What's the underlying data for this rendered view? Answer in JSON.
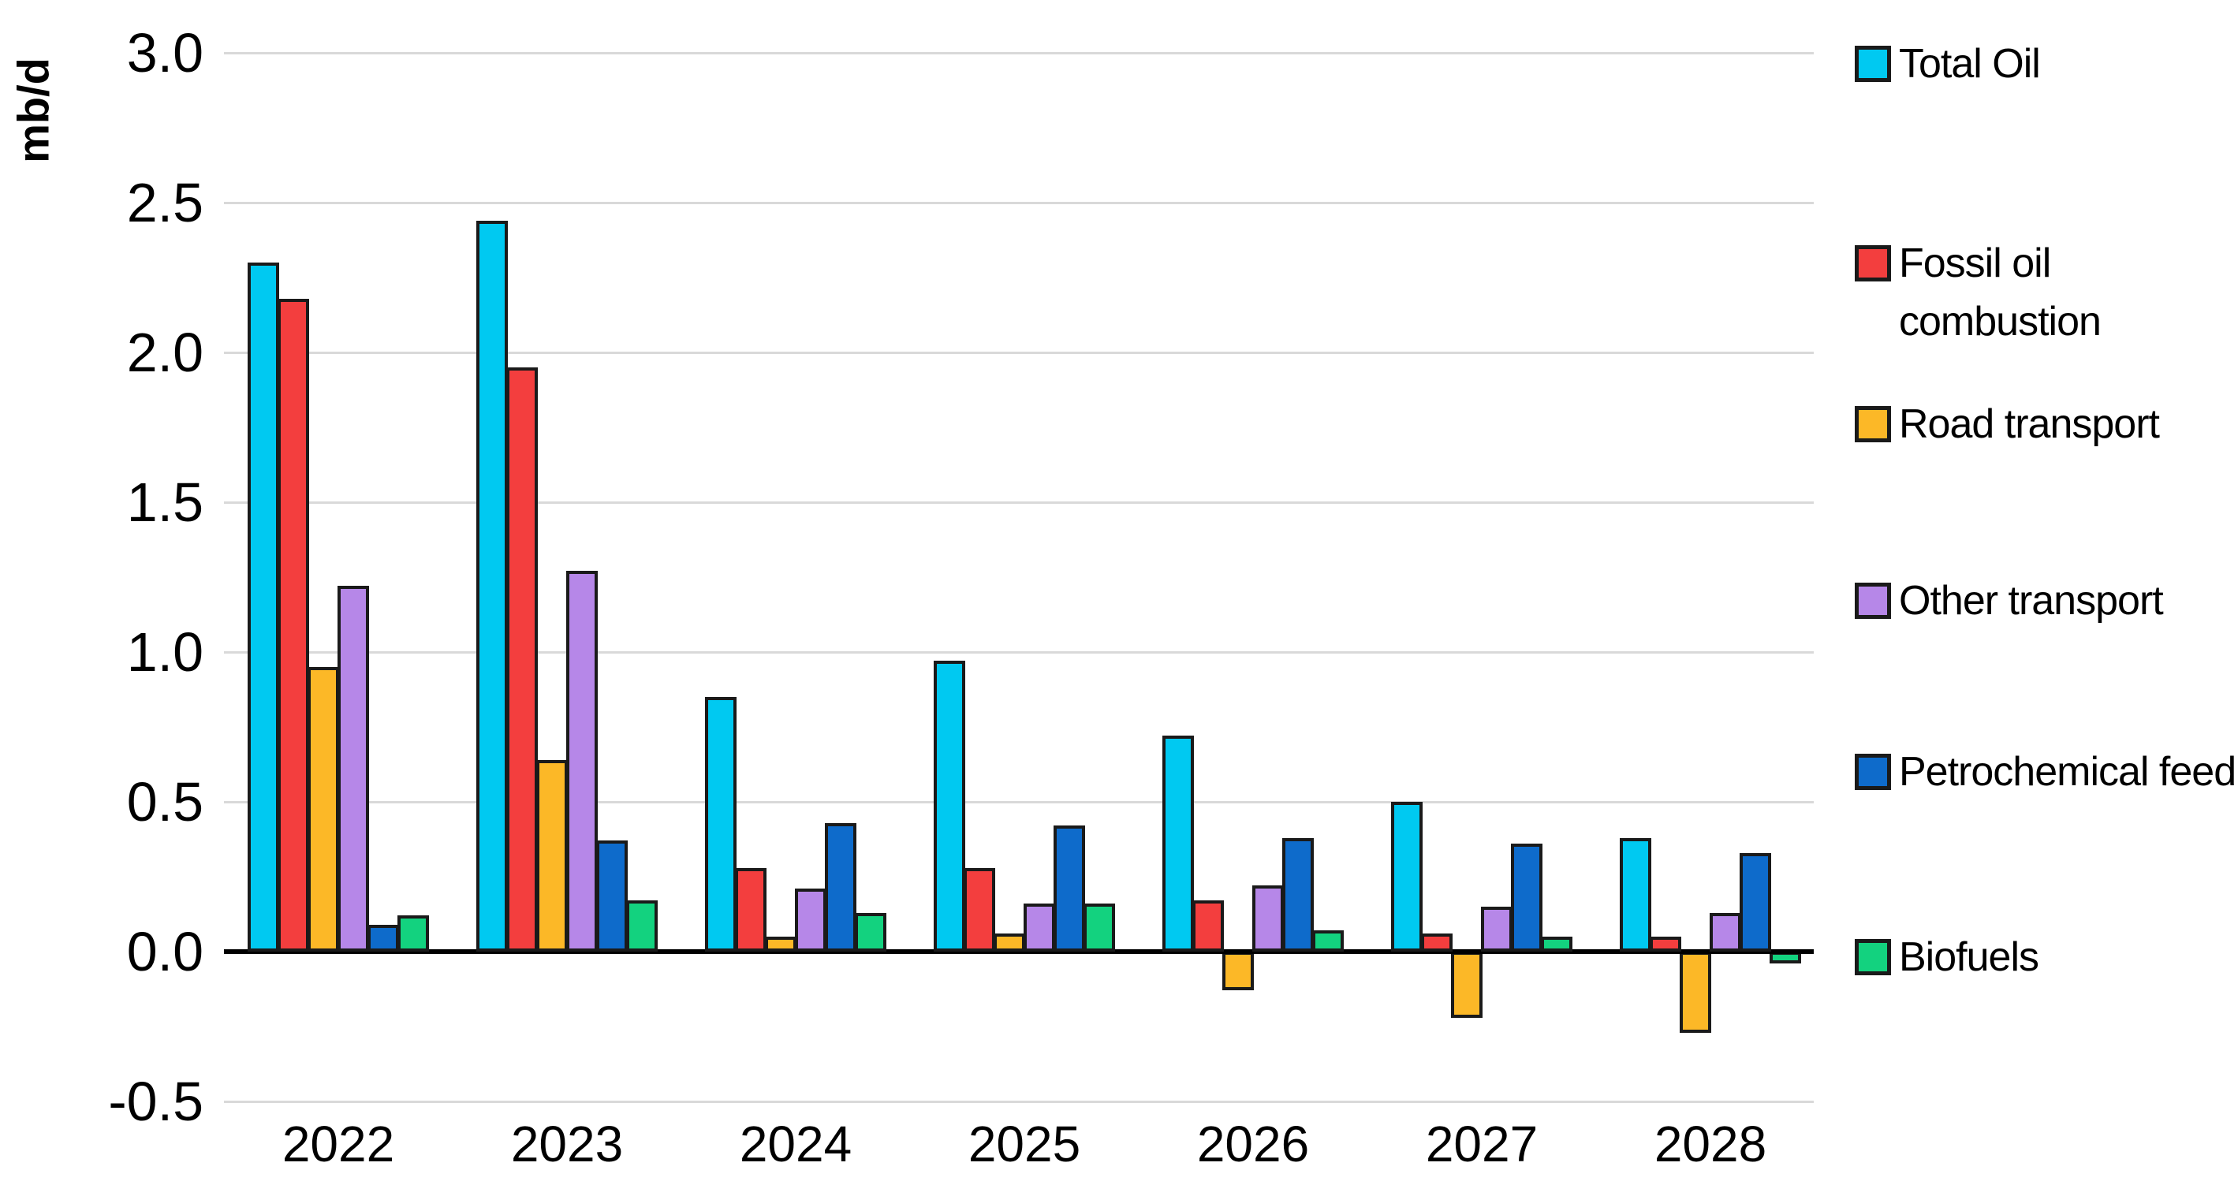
{
  "chart_data": {
    "type": "bar",
    "title": "",
    "ylabel": "mb/d",
    "xlabel": "",
    "categories": [
      "2022",
      "2023",
      "2024",
      "2025",
      "2026",
      "2027",
      "2028"
    ],
    "yticks": [
      "3.0",
      "2.5",
      "2.0",
      "1.5",
      "1.0",
      "0.5",
      "0.0",
      "-0.5"
    ],
    "ylim": [
      -0.5,
      3.0
    ],
    "grid": "horizontal",
    "legend_position": "right",
    "axis_color": "#000000",
    "gridline_color": "#D9D9D9",
    "series": [
      {
        "name": "Total Oil",
        "label_lines": [
          "Total Oil"
        ],
        "color": "#00C9F1",
        "values": [
          2.3,
          2.44,
          0.85,
          0.97,
          0.72,
          0.5,
          0.38
        ]
      },
      {
        "name": "Fossil oil combustion",
        "label_lines": [
          "Fossil oil",
          "combustion"
        ],
        "color": "#F33E3E",
        "values": [
          2.18,
          1.95,
          0.28,
          0.28,
          0.17,
          0.06,
          0.05
        ]
      },
      {
        "name": "Road transport",
        "label_lines": [
          "Road transport"
        ],
        "color": "#FCB827",
        "values": [
          0.95,
          0.64,
          0.05,
          0.06,
          -0.13,
          -0.22,
          -0.27
        ]
      },
      {
        "name": "Other transport",
        "label_lines": [
          "Other transport"
        ],
        "color": "#B687E8",
        "values": [
          1.22,
          1.27,
          0.21,
          0.16,
          0.22,
          0.15,
          0.13
        ]
      },
      {
        "name": "Petrochemical feed",
        "label_lines": [
          "Petrochemical feed"
        ],
        "color": "#0E6BCB",
        "values": [
          0.09,
          0.37,
          0.43,
          0.42,
          0.38,
          0.36,
          0.33
        ]
      },
      {
        "name": "Biofuels",
        "label_lines": [
          "Biofuels"
        ],
        "color": "#13D27F",
        "values": [
          0.12,
          0.17,
          0.13,
          0.16,
          0.07,
          0.05,
          -0.04
        ]
      }
    ]
  }
}
